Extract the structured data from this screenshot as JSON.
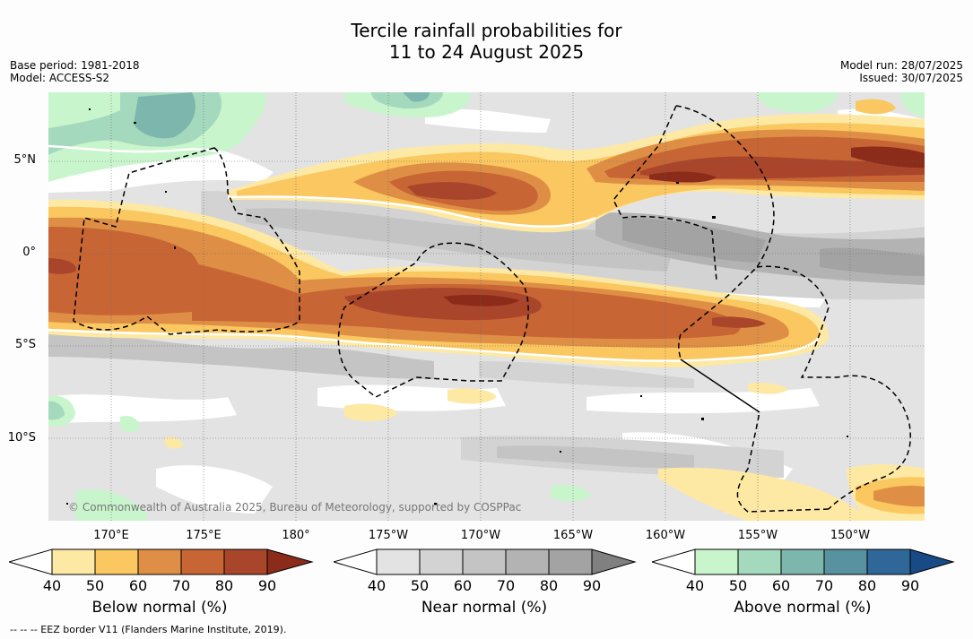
{
  "title": {
    "line1": "Tercile rainfall probabilities for",
    "line2": "11 to 24 August 2025"
  },
  "meta_left": {
    "base_period": "Base period: 1981-2018",
    "model": "Model: ACCESS-S2"
  },
  "meta_right": {
    "model_run": "Model run: 28/07/2025",
    "issued": "Issued: 30/07/2025"
  },
  "map": {
    "latitude_labels": [
      "5°N",
      "0°",
      "5°S",
      "10°S"
    ],
    "longitude_labels": [
      "170°E",
      "175°E",
      "180°",
      "175°W",
      "170°W",
      "165°W",
      "160°W",
      "155°W",
      "150°W"
    ],
    "copyright": "© Commonwealth of Australia 2025, Bureau of Meteorology, supported by COSPPac",
    "eez_note": "--  --  -- EEZ border V11 (Flanders Marine Institute, 2019)."
  },
  "colorbars": [
    {
      "name": "below-normal",
      "title": "Below normal (%)",
      "ticks": [
        "40",
        "50",
        "60",
        "70",
        "80",
        "90"
      ],
      "colors": [
        "#ffffff",
        "#fde9a3",
        "#fac760",
        "#de8f45",
        "#c86535",
        "#a9452a",
        "#8b2b19"
      ]
    },
    {
      "name": "near-normal",
      "title": "Near normal (%)",
      "ticks": [
        "40",
        "50",
        "60",
        "70",
        "80",
        "90"
      ],
      "colors": [
        "#ffffff",
        "#e3e3e3",
        "#d3d3d3",
        "#c4c4c4",
        "#b3b3b3",
        "#a3a3a3",
        "#808080"
      ]
    },
    {
      "name": "above-normal",
      "title": "Above normal (%)",
      "ticks": [
        "40",
        "50",
        "60",
        "70",
        "80",
        "90"
      ],
      "colors": [
        "#ffffff",
        "#c9f5cd",
        "#a5d9bd",
        "#7db6ad",
        "#58919f",
        "#2f6799",
        "#184a86"
      ]
    }
  ]
}
